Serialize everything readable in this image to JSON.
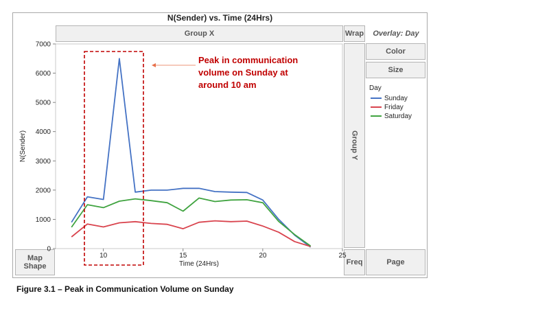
{
  "chart_data": {
    "type": "line",
    "title": "N(Sender) vs. Time (24Hrs)",
    "xlabel": "Time (24Hrs)",
    "ylabel": "N(Sender)",
    "xlim": [
      7,
      25
    ],
    "ylim": [
      0,
      7000
    ],
    "x_ticks": [
      "10",
      "15",
      "20",
      "25"
    ],
    "y_ticks": [
      "0",
      "1000",
      "2000",
      "3000",
      "4000",
      "5000",
      "6000",
      "7000"
    ],
    "x": [
      8,
      9,
      10,
      11,
      12,
      13,
      14,
      15,
      16,
      17,
      18,
      19,
      20,
      21,
      22,
      23
    ],
    "series": [
      {
        "name": "Sunday",
        "color": "#4472c4",
        "values": [
          900,
          1770,
          1680,
          6500,
          1930,
          2000,
          2000,
          2060,
          2060,
          1950,
          1930,
          1920,
          1660,
          1000,
          460,
          50
        ]
      },
      {
        "name": "Friday",
        "color": "#d9434d",
        "values": [
          400,
          840,
          740,
          880,
          920,
          860,
          830,
          680,
          900,
          950,
          920,
          940,
          770,
          560,
          240,
          70
        ]
      },
      {
        "name": "Saturday",
        "color": "#3fa33f",
        "values": [
          730,
          1500,
          1400,
          1620,
          1700,
          1640,
          1570,
          1280,
          1730,
          1610,
          1660,
          1670,
          1570,
          930,
          480,
          90
        ]
      }
    ],
    "legend_title": "Day",
    "legend_placement": "right",
    "annotation": "Peak in communication volume on Sunday at around 10 am",
    "annotation_color": "#c00000",
    "grid": false
  },
  "panels": {
    "group_x": "Group X",
    "wrap": "Wrap",
    "overlay": "Overlay: Day",
    "color": "Color",
    "size": "Size",
    "group_y": "Group Y",
    "map_shape": "Map Shape",
    "freq": "Freq",
    "page": "Page"
  },
  "annotation_lines": [
    "Peak in communication",
    "volume on Sunday at",
    "around 10 am"
  ],
  "caption": "Figure 3.1 – Peak in Communication Volume on Sunday"
}
